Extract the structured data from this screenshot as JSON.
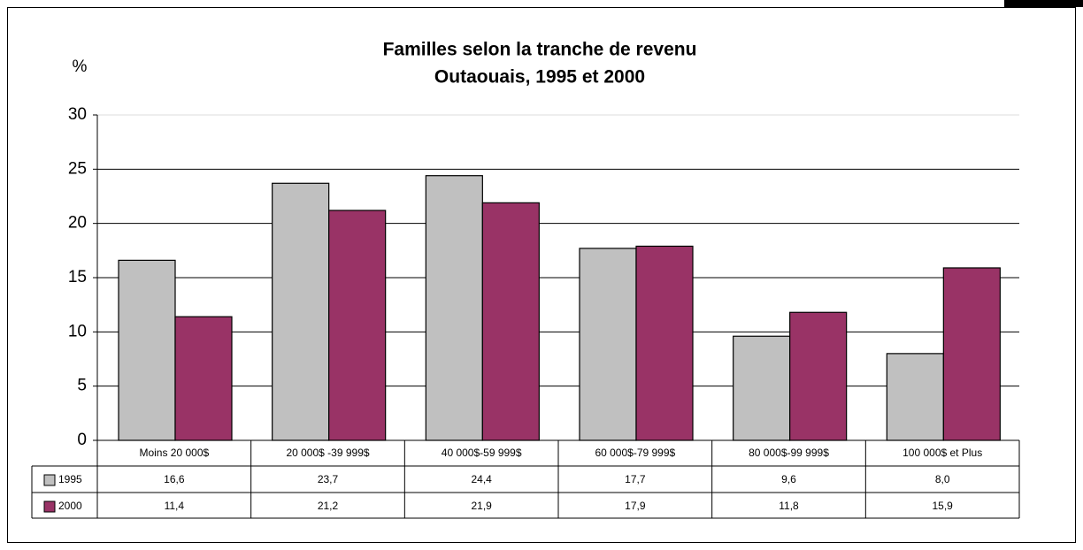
{
  "chart_data": {
    "type": "bar",
    "title": "Familles selon la tranche de revenu",
    "subtitle": "Outaouais,  1995 et 2000",
    "y_label": "%",
    "categories": [
      "Moins 20 000$",
      "20 000$ -39 999$",
      "40 000$-59 999$",
      "60 000$-79 999$",
      "80 000$-99 999$",
      "100 000$ et Plus"
    ],
    "series": [
      {
        "name": "1995",
        "color": "#c0c0c0",
        "values": [
          16.6,
          23.7,
          24.4,
          17.7,
          9.6,
          8.0
        ],
        "value_labels": [
          "16,6",
          "23,7",
          "24,4",
          "17,7",
          "9,6",
          "8,0"
        ]
      },
      {
        "name": "2000",
        "color": "#993366",
        "values": [
          11.4,
          21.2,
          21.9,
          17.9,
          11.8,
          15.9
        ],
        "value_labels": [
          "11,4",
          "21,2",
          "21,9",
          "17,9",
          "11,8",
          "15,9"
        ]
      }
    ],
    "ylim": [
      0,
      30
    ],
    "yticks": [
      0,
      5,
      10,
      15,
      20,
      25,
      30
    ],
    "grid": true
  }
}
